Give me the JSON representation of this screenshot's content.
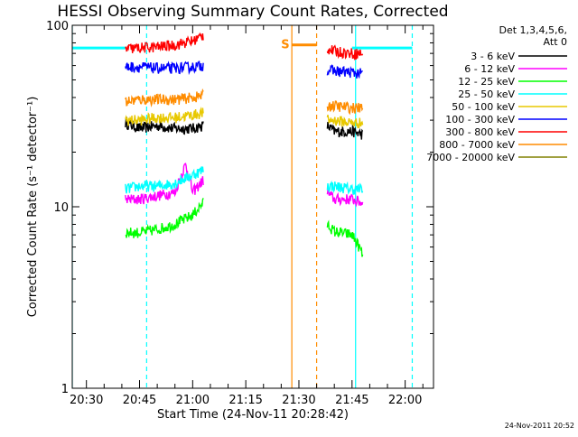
{
  "chart_data": {
    "type": "line",
    "title": "HESSI Observing Summary Count Rates, Corrected",
    "xlabel": "Start Time (24-Nov-11 20:28:42)",
    "ylabel": "Corrected Count Rate (s⁻¹ detector⁻¹)",
    "y_scale": "log",
    "xlim": [
      "20:26",
      "22:08"
    ],
    "ylim": [
      1,
      100
    ],
    "x_ticks": [
      "20:30",
      "20:45",
      "21:00",
      "21:15",
      "21:30",
      "21:45",
      "22:00"
    ],
    "y_ticks": [
      "1",
      "10",
      "100"
    ],
    "legend_title": [
      "Det 1,3,4,5,6,",
      "Att 0"
    ],
    "legend_position": "outside-right",
    "series": [
      {
        "name": "3 - 6 keV",
        "color": "#000000",
        "segments": [
          {
            "t": [
              "20:41",
              "20:45",
              "20:50",
              "20:55",
              "21:00",
              "21:03"
            ],
            "v": [
              29,
              27,
              28,
              27,
              27,
              28
            ]
          },
          {
            "t": [
              "21:38",
              "21:40",
              "21:45",
              "21:48"
            ],
            "v": [
              28,
              26,
              26,
              25
            ]
          }
        ]
      },
      {
        "name": "6 - 12 keV",
        "color": "#ff00ff",
        "segments": [
          {
            "t": [
              "20:41",
              "20:45",
              "20:50",
              "20:55",
              "20:58",
              "21:00",
              "21:03"
            ],
            "v": [
              11,
              11,
              11.5,
              12,
              17,
              12,
              14
            ]
          },
          {
            "t": [
              "21:38",
              "21:40",
              "21:45",
              "21:48"
            ],
            "v": [
              12,
              11,
              11,
              10.5
            ]
          }
        ]
      },
      {
        "name": "12 - 25 keV",
        "color": "#00ff00",
        "segments": [
          {
            "t": [
              "20:41",
              "20:45",
              "20:50",
              "20:55",
              "21:00",
              "21:03"
            ],
            "v": [
              7.2,
              7.2,
              7.5,
              8,
              9,
              10.5
            ]
          },
          {
            "t": [
              "21:38",
              "21:40",
              "21:45",
              "21:47",
              "21:48"
            ],
            "v": [
              8,
              7.3,
              7,
              6,
              5.4
            ]
          }
        ]
      },
      {
        "name": "25 - 50 keV",
        "color": "#00ffff",
        "segments": [
          {
            "t": [
              "20:41",
              "20:45",
              "20:50",
              "20:55",
              "21:00",
              "21:03"
            ],
            "v": [
              12.5,
              13,
              13,
              13.5,
              15,
              16
            ]
          },
          {
            "t": [
              "21:38",
              "21:40",
              "21:45",
              "21:48"
            ],
            "v": [
              13,
              13,
              12.5,
              12.5
            ]
          }
        ]
      },
      {
        "name": "50 - 100 keV",
        "color": "#e8c800",
        "segments": [
          {
            "t": [
              "20:41",
              "20:45",
              "20:50",
              "20:55",
              "21:00",
              "21:03"
            ],
            "v": [
              30,
              30,
              31,
              31,
              32,
              33
            ]
          },
          {
            "t": [
              "21:38",
              "21:40",
              "21:45",
              "21:48"
            ],
            "v": [
              30,
              30,
              29,
              29
            ]
          }
        ]
      },
      {
        "name": "100 - 300 keV",
        "color": "#0000ff",
        "segments": [
          {
            "t": [
              "20:41",
              "20:45",
              "20:50",
              "20:55",
              "21:00",
              "21:03"
            ],
            "v": [
              59,
              59,
              58,
              58,
              59,
              60
            ]
          },
          {
            "t": [
              "21:38",
              "21:40",
              "21:45",
              "21:48"
            ],
            "v": [
              57,
              56,
              55,
              54
            ]
          }
        ]
      },
      {
        "name": "300 - 800 keV",
        "color": "#ff0000",
        "segments": [
          {
            "t": [
              "20:41",
              "20:45",
              "20:50",
              "20:55",
              "21:00",
              "21:03"
            ],
            "v": [
              74,
              75,
              76,
              78,
              82,
              88
            ]
          },
          {
            "t": [
              "21:38",
              "21:40",
              "21:45",
              "21:48"
            ],
            "v": [
              74,
              72,
              70,
              70
            ]
          }
        ]
      },
      {
        "name": "800 - 7000 keV",
        "color": "#ff8c00",
        "segments": [
          {
            "t": [
              "20:41",
              "20:45",
              "20:50",
              "20:55",
              "21:00",
              "21:03"
            ],
            "v": [
              38,
              39,
              39,
              39,
              40,
              41
            ]
          },
          {
            "t": [
              "21:38",
              "21:40",
              "21:45",
              "21:48"
            ],
            "v": [
              36,
              36,
              35,
              35
            ]
          }
        ]
      },
      {
        "name": "7000 - 20000 keV",
        "color": "#808000",
        "segments": []
      }
    ],
    "vertical_lines": [
      {
        "t": "20:26",
        "color": "#00ffff",
        "style": "solid"
      },
      {
        "t": "20:47",
        "color": "#00ffff",
        "style": "dashed"
      },
      {
        "t": "21:46",
        "color": "#00ffff",
        "style": "solid"
      },
      {
        "t": "22:02",
        "color": "#00ffff",
        "style": "dashed"
      },
      {
        "t": "21:28",
        "color": "#ff8c00",
        "style": "solid"
      },
      {
        "t": "21:35",
        "color": "#ff8c00",
        "style": "dashed"
      }
    ],
    "status_lines": [
      {
        "color": "#00ffff",
        "value": 75,
        "segments": [
          [
            "20:26",
            "20:41"
          ],
          [
            "21:45",
            "22:02"
          ]
        ]
      },
      {
        "color": "#ff8c00",
        "value": 78,
        "segments": [
          [
            "21:28",
            "21:35"
          ]
        ]
      }
    ],
    "annotations": [
      {
        "text": "S",
        "t": "21:27",
        "value": 78,
        "color": "#ff8c00"
      }
    ],
    "timestamp": "24-Nov-2011 20:52"
  }
}
